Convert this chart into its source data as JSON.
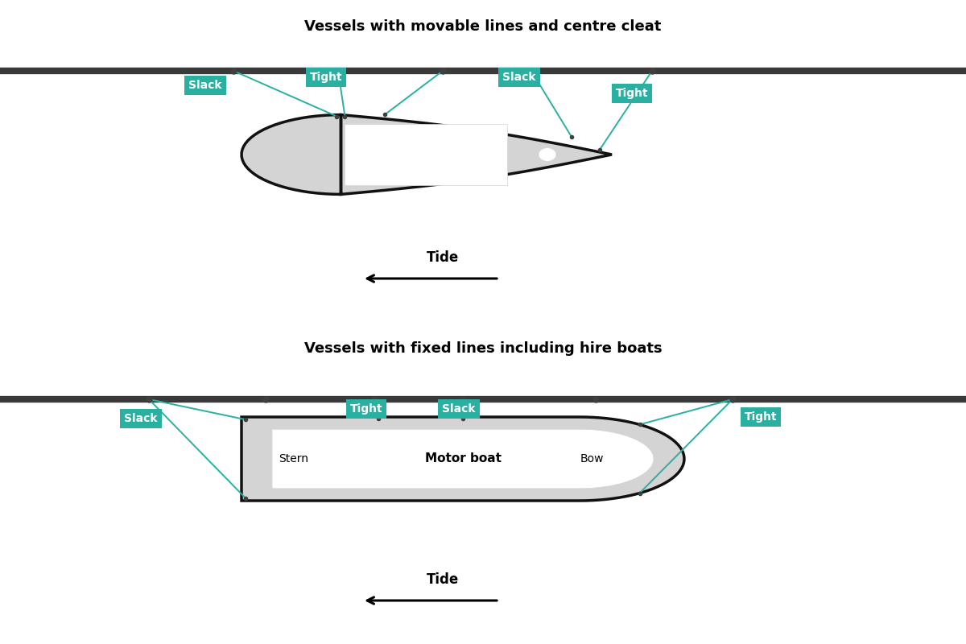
{
  "bg_color": "#ffffff",
  "teal": "#2ab0a0",
  "dark_gray": "#404040",
  "rail_color": "#3a3a3a",
  "boat_fill": "#d4d4d4",
  "boat_edge": "#111111",
  "mooring_line_color": "#2ab0a0",
  "title1": "Vessels with movable lines and centre cleat",
  "title2": "Vessels with fixed lines including hire boats",
  "tide_label": "Tide",
  "stern_label": "Stern",
  "bow_label": "Bow",
  "motorboat_label": "Motor boat",
  "rail_lw": 6,
  "boat_lw": 2.5,
  "line_lw": 1.4
}
